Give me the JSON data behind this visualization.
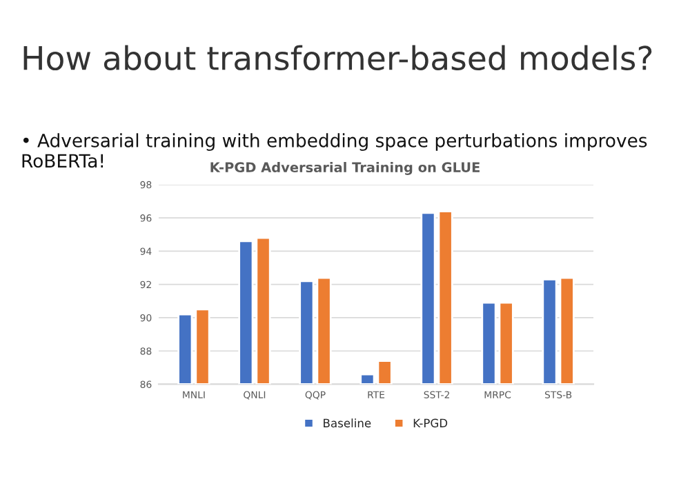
{
  "chart_data": {
    "type": "bar",
    "title": "How about transformer-based models?",
    "subtitle": "• Adversarial training with embedding space perturbations improves RoBERTa!",
    "annotations": [
      "K-PGD Adversarial Training on GLUE"
    ],
    "categories": [
      "MNLI",
      "QNLI",
      "QQP",
      "RTE",
      "SST-2",
      "MRPC",
      "STS-B"
    ],
    "series": [
      {
        "name": "Baseline",
        "color": "#4472c4",
        "values": [
          90.2,
          94.6,
          92.2,
          86.6,
          96.3,
          90.9,
          92.3
        ]
      },
      {
        "name": "K-PGD",
        "color": "#ed7d31",
        "values": [
          90.5,
          94.8,
          92.4,
          87.4,
          96.4,
          90.9,
          92.4
        ]
      }
    ],
    "ylim": [
      86,
      98
    ],
    "yticks": [
      86,
      88,
      90,
      92,
      94,
      96,
      98
    ],
    "grid": "y",
    "legend": "bottom"
  }
}
